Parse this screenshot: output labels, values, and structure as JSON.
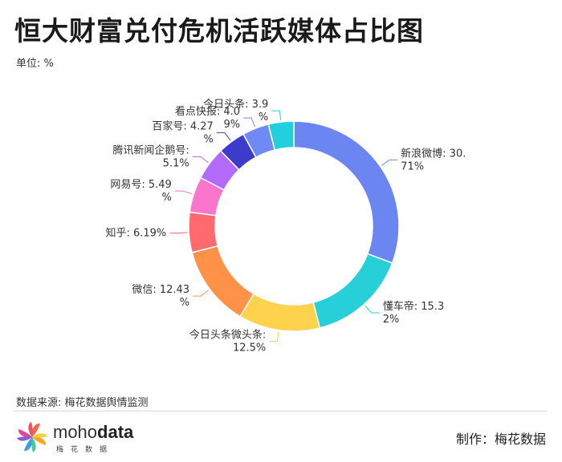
{
  "title": "恒大财富兑付危机活跃媒体占比图",
  "unit": "单位: %",
  "source": "数据来源: 梅花数据舆情监测",
  "maker": "制作：梅花数据",
  "logo": {
    "word_a": "moho",
    "word_b": "data",
    "sub": "梅花数据"
  },
  "chart_data": {
    "type": "pie",
    "donut": true,
    "unit": "%",
    "categories": [
      "新浪微博",
      "懂车帝",
      "今日头条微头条",
      "微信",
      "知乎",
      "网易号",
      "腾讯新闻企鹅号",
      "百家号",
      "看点快报",
      "今日头条"
    ],
    "values": [
      30.71,
      15.32,
      12.5,
      12.43,
      6.19,
      5.49,
      5.1,
      4.27,
      4.09,
      3.9
    ],
    "labels": [
      [
        "新浪微博: 30.",
        "71%"
      ],
      [
        "懂车帝: 15.3",
        "2%"
      ],
      [
        "今日头条微头条:",
        "12.5%"
      ],
      [
        "微信: 12.43",
        "%"
      ],
      [
        "知乎: 6.19%"
      ],
      [
        "网易号: 5.49",
        "%"
      ],
      [
        "腾讯新闻企鹅号:",
        "5.1%"
      ],
      [
        "百家号: 4.27",
        "%"
      ],
      [
        "看点快报: 4.0",
        "9%"
      ],
      [
        "今日头条: 3.9",
        "%"
      ]
    ],
    "colors": [
      "#6b86f0",
      "#27cfd9",
      "#ffd24d",
      "#ff9248",
      "#fe6a6e",
      "#fc75cd",
      "#b26afa",
      "#3b3ccc",
      "#6f8af4",
      "#22cfdd"
    ]
  }
}
